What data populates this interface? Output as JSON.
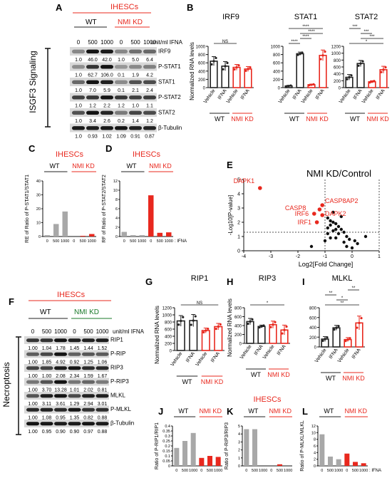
{
  "panel_letters": {
    "A": "A",
    "B": "B",
    "C": "C",
    "D": "D",
    "E": "E",
    "F": "F",
    "G": "G",
    "H": "H",
    "I": "I",
    "J": "J",
    "K": "K",
    "L": "L"
  },
  "colors": {
    "wt": "#222222",
    "kd": "#e8281e",
    "red_text": "#e8281e",
    "green_text": "#1a7a2a",
    "gray_bar": "#a8a8a8",
    "red_bar": "#e8281e"
  },
  "panel_A": {
    "header": "IHESCs",
    "wt": "WT",
    "kd": "NMI KD",
    "doses": [
      "0",
      "500",
      "1000",
      "0",
      "500",
      "1000"
    ],
    "unit": "unit/ml IFNA",
    "side_label": "ISGF3 Signaling",
    "blots": [
      {
        "name": "IRF9",
        "values": [
          "1.0",
          "46.0",
          "42.0",
          "1.0",
          "5.0",
          "6.4"
        ]
      },
      {
        "name": "P-STAT1",
        "values": [
          "1.0",
          "62.7",
          "106.0",
          "0.1",
          "1.9",
          "4.2"
        ]
      },
      {
        "name": "STAT1",
        "values": [
          "1.0",
          "7.0",
          "5.9",
          "0.1",
          "2.1",
          "2.4"
        ]
      },
      {
        "name": "P-STAT2",
        "values": [
          "1.0",
          "1.2",
          "2.2",
          "1.2",
          "1.0",
          "1.1"
        ]
      },
      {
        "name": "STAT2",
        "values": [
          "1.0",
          "3.4",
          "2.6",
          "0.2",
          "1.4",
          "1.2"
        ]
      },
      {
        "name": "β-Tubulin",
        "values": [
          "1.0",
          "0.93",
          "1.02",
          "1.09",
          "0.91",
          "0.87"
        ]
      }
    ]
  },
  "panel_B": {
    "ylabel": "Normalized RNA levels",
    "charts": [
      {
        "title": "IRF9",
        "yticks": [
          "0",
          "200",
          "400",
          "600",
          "800",
          "1000"
        ],
        "ymax": 1000,
        "values": [
          640,
          520,
          490,
          450
        ],
        "errors": [
          110,
          110,
          70,
          60
        ],
        "sig": [
          {
            "a": 0,
            "b": 2,
            "label": "NS"
          }
        ]
      },
      {
        "title": "STAT1",
        "yticks": [
          "0",
          "200",
          "400",
          "600",
          "800",
          "1000"
        ],
        "ymax": 1000,
        "values": [
          40,
          820,
          70,
          780
        ],
        "errors": [
          15,
          40,
          15,
          130
        ],
        "sig": [
          {
            "a": 0,
            "b": 1,
            "label": "****"
          },
          {
            "a": 1,
            "b": 2,
            "label": "****"
          },
          {
            "a": 1,
            "b": 3,
            "label": "****"
          },
          {
            "a": 0,
            "b": 3,
            "label": "****"
          }
        ]
      },
      {
        "title": "STAT2",
        "yticks": [
          "0",
          "200",
          "400",
          "600",
          "800",
          "1000",
          "1200"
        ],
        "ymax": 1200,
        "values": [
          300,
          700,
          170,
          520
        ],
        "errors": [
          80,
          90,
          30,
          100
        ],
        "sig": [
          {
            "a": 0,
            "b": 3,
            "label": "*"
          },
          {
            "a": 1,
            "b": 3,
            "label": "***"
          },
          {
            "a": 1,
            "b": 2,
            "label": "***"
          },
          {
            "a": 0,
            "b": 1,
            "label": "***"
          }
        ]
      }
    ],
    "xlabels": [
      "Vehicle",
      "IFNA",
      "Vehicle",
      "IFNA"
    ],
    "wt": "WT",
    "kd": "NMI KD"
  },
  "panel_C": {
    "title": "IHESCs",
    "wt": "WT",
    "kd": "NMI KD",
    "ylabel": "RE of Ratio of P-STAT1/STAT1",
    "yticks": [
      "0",
      "10",
      "20",
      "30",
      "40"
    ],
    "ymax": 40,
    "xticks": [
      "0",
      "500",
      "1000",
      "0",
      "500",
      "1000"
    ],
    "values": [
      1.0,
      9.0,
      18.0,
      0,
      0.5,
      1.8
    ]
  },
  "panel_D": {
    "title": "IHESCs",
    "wt": "WT",
    "kd": "NMI KD",
    "ylabel": "RF of Ratio of P-STAT2/STAT2",
    "yticks": [
      "0",
      "2",
      "4",
      "6",
      "8",
      "10",
      "12"
    ],
    "ymax": 12,
    "xticks": [
      "0",
      "500",
      "1000",
      "0",
      "500",
      "1000"
    ],
    "values": [
      1.0,
      0.3,
      0.3,
      8.9,
      0.8,
      0.9
    ],
    "xsuffix": ": IFNA"
  },
  "panel_E": {
    "title": "NMI KD/Control",
    "ylabel": "-Log10[P-value]",
    "xlabel": "Log2[Fold Change]",
    "xticks": [
      "-4",
      "-3",
      "-2",
      "-1",
      "0",
      "1"
    ],
    "yticks": [
      "0",
      "1",
      "2",
      "3",
      "4",
      "5"
    ],
    "labels": [
      "DAPK1",
      "CASP8AP2",
      "CASP8",
      "IRF6",
      "DAPK2",
      "IRF1"
    ]
  },
  "panel_F": {
    "header": "IHESCs",
    "wt": "WT",
    "kd": "NMI KD",
    "doses": [
      "0",
      "500",
      "1000",
      "0",
      "500",
      "1000"
    ],
    "unit": "unit/ml IFNA",
    "side_label": "Necroptosis",
    "blots": [
      {
        "name": "RIP1",
        "values": [
          "1.00",
          "1.04",
          "1.78",
          "1.45",
          "1.44",
          "1.52"
        ]
      },
      {
        "name": "P-RIP",
        "values": [
          "1.00",
          "1.85",
          "4.92",
          "0.92",
          "1.25",
          "1.06"
        ]
      },
      {
        "name": "RIP3",
        "values": [
          "1.00",
          "1.00",
          "2.08",
          "2.34",
          "1.59",
          "1.67"
        ]
      },
      {
        "name": "P-RIP3",
        "values": [
          "1.00",
          "3.70",
          "13.28",
          "1.01",
          "2.02",
          "0.81"
        ]
      },
      {
        "name": "MLKL",
        "values": [
          "1.00",
          "3.11",
          "3.61",
          "1.29",
          "2.94",
          "3.01"
        ]
      },
      {
        "name": "P-MLKL",
        "values": [
          "1.00",
          "1.08",
          "0.95",
          "1.35",
          "0.82",
          "0.88"
        ]
      },
      {
        "name": "β-Tubulin",
        "values": [
          "1.00",
          "0.95",
          "0.90",
          "0.90",
          "0.97",
          "0.88"
        ]
      }
    ]
  },
  "panel_GHI": {
    "ylabel": "Normalized RNA levels",
    "charts": [
      {
        "title": "RIP1",
        "yticks": [
          "0",
          "200",
          "400",
          "600",
          "800",
          "1000",
          "1200"
        ],
        "ymax": 1200,
        "values": [
          830,
          840,
          560,
          670
        ],
        "errors": [
          150,
          170,
          70,
          90
        ],
        "sig": [
          {
            "a": 0,
            "b": 3,
            "label": "NS"
          }
        ]
      },
      {
        "title": "RIP3",
        "yticks": [
          "0",
          "200",
          "400",
          "600",
          "800"
        ],
        "ymax": 800,
        "values": [
          490,
          380,
          420,
          300
        ],
        "errors": [
          70,
          30,
          80,
          110
        ],
        "sig": [
          {
            "a": 0,
            "b": 3,
            "label": "*"
          }
        ]
      },
      {
        "title": "MLKL",
        "yticks": [
          "0",
          "200",
          "400",
          "600",
          "800"
        ],
        "ymax": 800,
        "values": [
          160,
          390,
          150,
          490
        ],
        "errors": [
          50,
          50,
          40,
          140
        ],
        "sig": [
          {
            "a": 0,
            "b": 3,
            "label": "**"
          },
          {
            "a": 1,
            "b": 2,
            "label": "*"
          },
          {
            "a": 0,
            "b": 1,
            "label": "**"
          },
          {
            "a": 2,
            "b": 3,
            "label": "**"
          }
        ]
      }
    ],
    "xlabels": [
      "Vehicle",
      "IFNA",
      "Vehicle",
      "IFNA"
    ],
    "wt": "WT",
    "kd": "NMI KD"
  },
  "panel_J": {
    "wt": "WT",
    "kd": "NMI KD",
    "ylabel": "Ratio of P-RIP1/RIP1",
    "yticks": [
      "0",
      "0.05",
      "0.1",
      "0.15",
      "0.2",
      "0.25",
      "0.3",
      "0.35",
      "0.4"
    ],
    "ymax": 0.4,
    "xticks": [
      "0",
      "500",
      "1000",
      "0",
      "500",
      "1000"
    ],
    "values": [
      0.18,
      0.25,
      0.33,
      0.08,
      0.1,
      0.09
    ]
  },
  "panel_K": {
    "title": "IHESCs",
    "wt": "WT",
    "kd": "NMI KD",
    "ylabel": "Ratio of P-RIP3/RIP3",
    "yticks": [
      "0",
      "1",
      "2",
      "3",
      "4",
      "5"
    ],
    "ymax": 5,
    "xticks": [
      "0",
      "500",
      "1000",
      "0",
      "500",
      "1000"
    ],
    "values": [
      4.6,
      4.6,
      0,
      0,
      0.2,
      0
    ]
  },
  "panel_L": {
    "wt": "WT",
    "kd": "NMI KD",
    "ylabel": "Ratio of P-MLKL/MLKL",
    "yticks": [
      "0",
      "2",
      "4",
      "6",
      "8",
      "10",
      "12"
    ],
    "ymax": 12,
    "xticks": [
      "0",
      "500",
      "1000",
      "0",
      "500",
      "1000"
    ],
    "values": [
      9.5,
      2.8,
      2.0,
      3.7,
      1.2,
      0.8
    ],
    "xsuffix": ": IFNA"
  }
}
